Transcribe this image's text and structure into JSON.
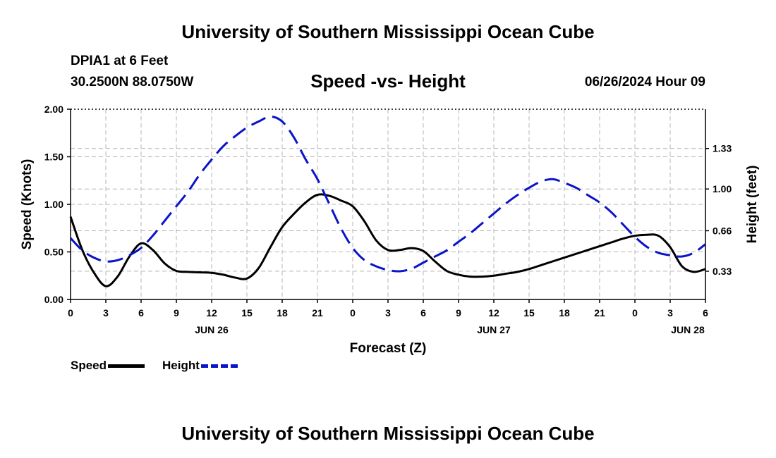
{
  "header": {
    "title": "University of Southern Mississippi Ocean Cube",
    "station": "DPIA1 at 6 Feet",
    "coords": "30.2500N  88.0750W",
    "date": "06/26/2024 Hour 09"
  },
  "footer": {
    "title": "University of Southern Mississippi Ocean Cube"
  },
  "legend": {
    "speed_label": "Speed",
    "height_label": "Height"
  },
  "colors": {
    "speed": "#000000",
    "height": "#0a14c8",
    "grid": "#b4b4b4"
  },
  "chart_data": {
    "type": "line",
    "title": "Speed -vs- Height",
    "xlabel": "Forecast (Z)",
    "ylabel": "Speed (Knots)",
    "y2label": "Height (feet)",
    "xlim": [
      0,
      54
    ],
    "x_ticks": [
      0,
      3,
      6,
      9,
      12,
      15,
      18,
      21,
      24,
      27,
      30,
      33,
      36,
      39,
      42,
      45,
      48,
      51,
      54
    ],
    "x_tick_labels": [
      "0",
      "3",
      "6",
      "9",
      "12",
      "15",
      "18",
      "21",
      "0",
      "3",
      "6",
      "9",
      "12",
      "15",
      "18",
      "21",
      "0",
      "3",
      "6"
    ],
    "day_labels": [
      {
        "x": 12,
        "label": "JUN 26"
      },
      {
        "x": 36,
        "label": "JUN 27"
      },
      {
        "x": 52.5,
        "label": "JUN 28"
      }
    ],
    "ylim": [
      0,
      2
    ],
    "y_ticks": [
      0,
      0.5,
      1,
      1.5,
      2
    ],
    "y_tick_labels": [
      "0.00",
      "0.50",
      "1.00",
      "1.50",
      "2.00"
    ],
    "y2lim": [
      0.1,
      1.65
    ],
    "y2_ticks": [
      0.33,
      0.66,
      1.0,
      1.33
    ],
    "y2_tick_labels": [
      "0.33",
      "0.66",
      "1.00",
      "1.33"
    ],
    "grid": true,
    "series": [
      {
        "name": "Speed",
        "axis": "left",
        "style": "solid",
        "x": [
          0,
          1,
          2,
          3,
          4,
          5,
          6,
          7,
          8,
          9,
          10,
          11,
          12,
          13,
          14,
          15,
          16,
          17,
          18,
          19,
          20,
          21,
          22,
          23,
          24,
          25,
          26,
          27,
          28,
          29,
          30,
          31,
          32,
          33,
          34,
          35,
          36,
          37,
          38,
          39,
          40,
          41,
          42,
          43,
          44,
          45,
          46,
          47,
          48,
          49,
          50,
          51,
          52,
          53,
          54
        ],
        "values": [
          0.87,
          0.52,
          0.28,
          0.14,
          0.24,
          0.45,
          0.59,
          0.52,
          0.38,
          0.3,
          0.29,
          0.285,
          0.28,
          0.26,
          0.23,
          0.22,
          0.33,
          0.55,
          0.76,
          0.9,
          1.02,
          1.1,
          1.09,
          1.04,
          0.98,
          0.82,
          0.62,
          0.52,
          0.52,
          0.54,
          0.51,
          0.4,
          0.3,
          0.26,
          0.24,
          0.24,
          0.25,
          0.27,
          0.29,
          0.32,
          0.36,
          0.4,
          0.44,
          0.48,
          0.52,
          0.56,
          0.6,
          0.64,
          0.67,
          0.68,
          0.67,
          0.55,
          0.35,
          0.29,
          0.32
        ]
      },
      {
        "name": "Height",
        "axis": "right",
        "style": "dashed",
        "x": [
          0,
          1,
          2,
          3,
          4,
          5,
          6,
          7,
          8,
          9,
          10,
          11,
          12,
          13,
          14,
          15,
          16,
          17,
          18,
          19,
          20,
          21,
          22,
          23,
          24,
          25,
          26,
          27,
          28,
          29,
          30,
          31,
          32,
          33,
          34,
          35,
          36,
          37,
          38,
          39,
          40,
          41,
          42,
          43,
          44,
          45,
          46,
          47,
          48,
          49,
          50,
          51,
          52,
          53,
          54
        ],
        "values": [
          0.6,
          0.5,
          0.44,
          0.41,
          0.42,
          0.46,
          0.52,
          0.62,
          0.74,
          0.86,
          0.98,
          1.12,
          1.24,
          1.35,
          1.43,
          1.5,
          1.55,
          1.59,
          1.55,
          1.42,
          1.24,
          1.08,
          0.88,
          0.68,
          0.52,
          0.42,
          0.37,
          0.34,
          0.33,
          0.35,
          0.4,
          0.45,
          0.5,
          0.57,
          0.64,
          0.72,
          0.8,
          0.88,
          0.95,
          1.01,
          1.06,
          1.08,
          1.05,
          1.01,
          0.95,
          0.89,
          0.81,
          0.71,
          0.61,
          0.53,
          0.48,
          0.46,
          0.45,
          0.48,
          0.55
        ]
      }
    ]
  }
}
